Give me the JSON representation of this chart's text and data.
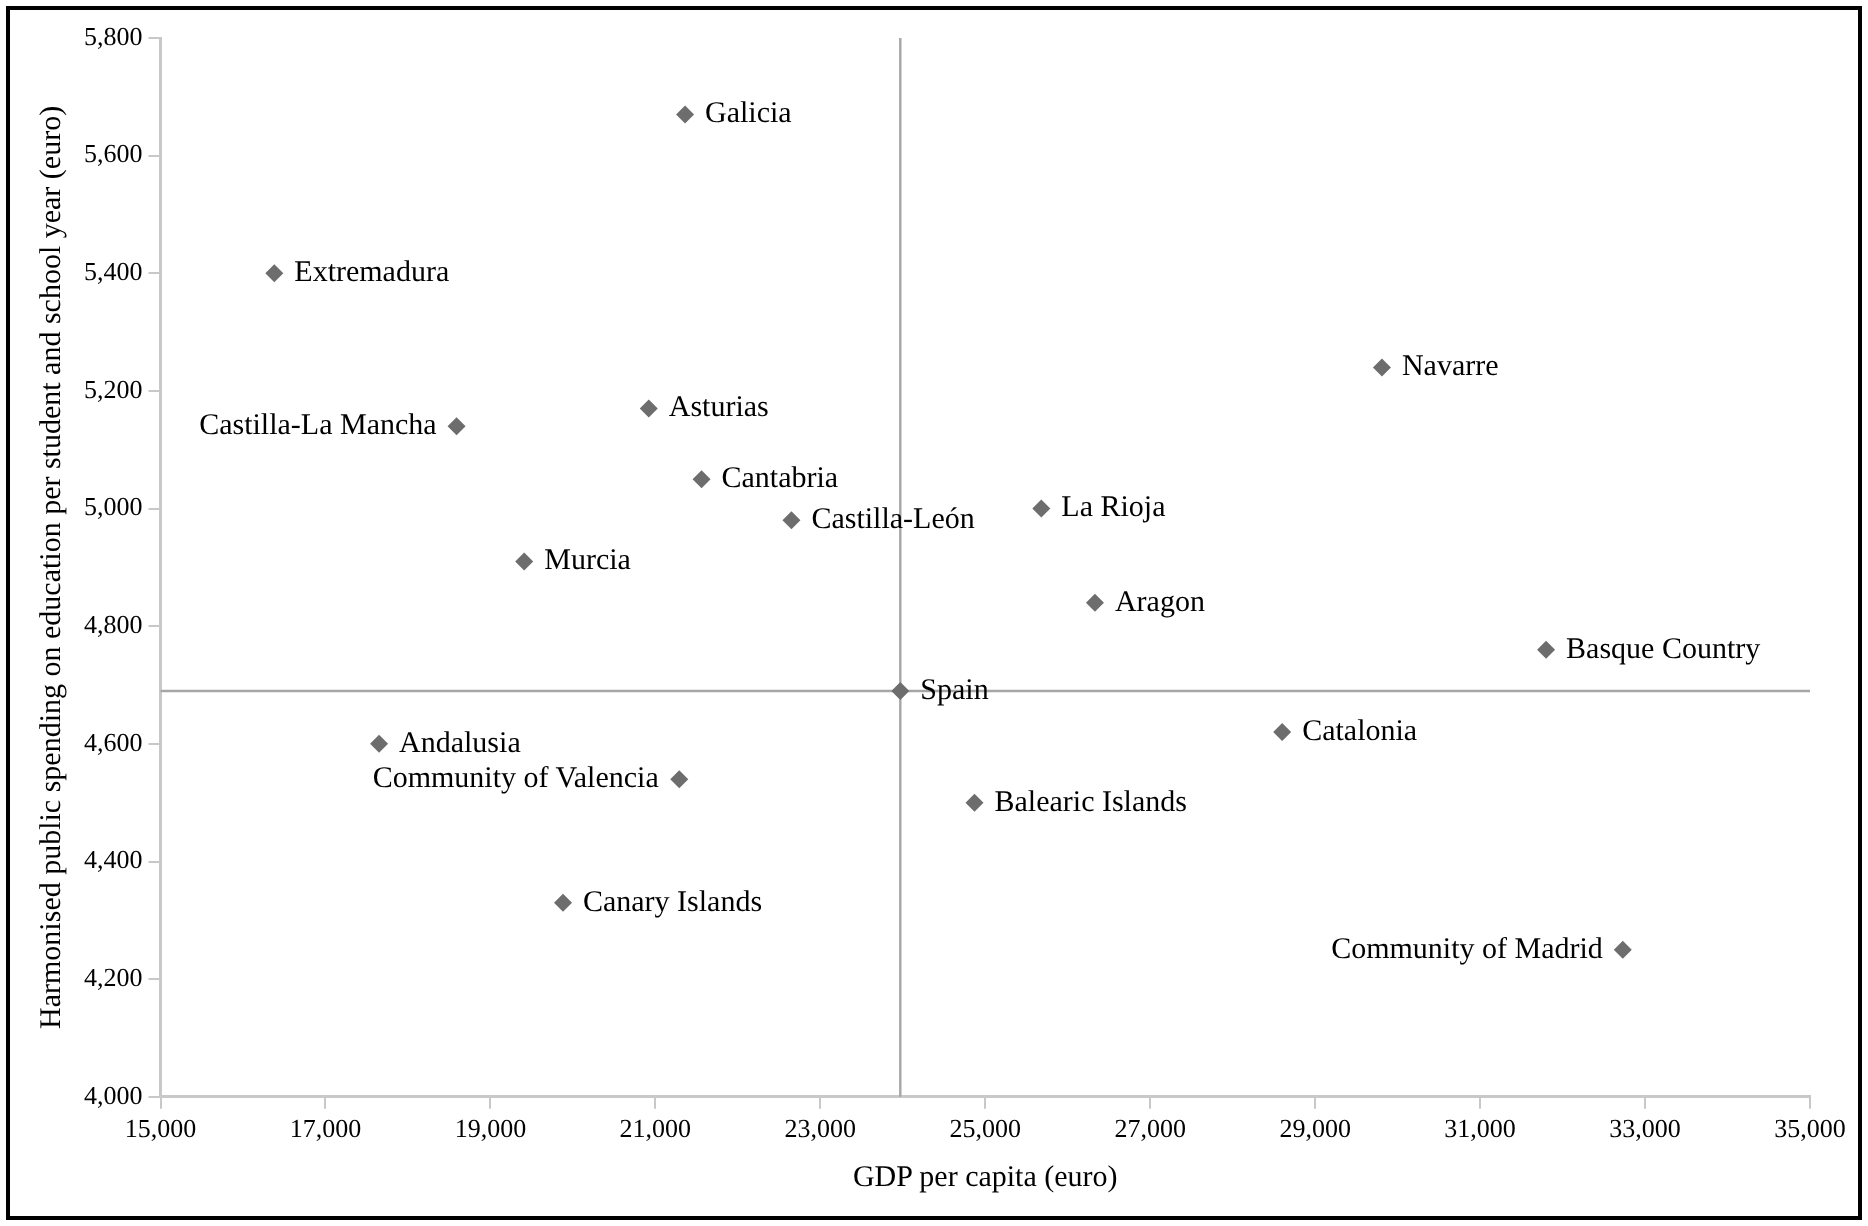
{
  "chart_data": {
    "type": "scatter",
    "xlabel": "GDP per capita (euro)",
    "ylabel": "Harmonised public spending on education per student and school year (euro)",
    "xlim": [
      15000,
      35000
    ],
    "xticks": [
      {
        "value": 15000,
        "label": "15,000"
      },
      {
        "value": 17000,
        "label": "17,000"
      },
      {
        "value": 19000,
        "label": "19,000"
      },
      {
        "value": 21000,
        "label": "21,000"
      },
      {
        "value": 23000,
        "label": "23,000"
      },
      {
        "value": 25000,
        "label": "25,000"
      },
      {
        "value": 27000,
        "label": "27,000"
      },
      {
        "value": 29000,
        "label": "29,000"
      },
      {
        "value": 31000,
        "label": "31,000"
      },
      {
        "value": 33000,
        "label": "33,000"
      },
      {
        "value": 35000,
        "label": "35,000"
      }
    ],
    "ylim": [
      4000,
      5800
    ],
    "yticks": [
      {
        "value": 4000,
        "label": "4,000"
      },
      {
        "value": 4200,
        "label": "4,200"
      },
      {
        "value": 4400,
        "label": "4,400"
      },
      {
        "value": 4600,
        "label": "4,600"
      },
      {
        "value": 4800,
        "label": "4,800"
      },
      {
        "value": 5000,
        "label": "5,000"
      },
      {
        "value": 5200,
        "label": "5,200"
      },
      {
        "value": 5400,
        "label": "5,400"
      },
      {
        "value": 5600,
        "label": "5,600"
      },
      {
        "value": 5800,
        "label": "5,800"
      }
    ],
    "grid": false,
    "legend": false,
    "marker": "diamond",
    "series": [
      {
        "color": "#6d6d6d",
        "x": [
          21360,
          16380,
          18590,
          20920,
          21560,
          22650,
          19410,
          29810,
          25680,
          26330,
          23970,
          17650,
          21290,
          19880,
          31800,
          28600,
          24870,
          32730
        ],
        "values": [
          5670,
          5400,
          5140,
          5170,
          5050,
          4980,
          4910,
          5240,
          5000,
          4840,
          4690,
          4600,
          4540,
          4330,
          4760,
          4620,
          4500,
          4250
        ]
      }
    ],
    "ref_lines": [
      {
        "axis": "x",
        "value": 23970,
        "color": "#a6a6a6"
      },
      {
        "axis": "y",
        "value": 4690,
        "color": "#a6a6a6"
      }
    ],
    "annotations": [
      {
        "text": "Galicia",
        "x": 21360,
        "y": 5670
      },
      {
        "text": "Extremadura",
        "x": 16380,
        "y": 5400
      },
      {
        "text": "Castilla-La Mancha",
        "x": 18590,
        "y": 5140
      },
      {
        "text": "Asturias",
        "x": 20920,
        "y": 5170
      },
      {
        "text": "Cantabria",
        "x": 21560,
        "y": 5050
      },
      {
        "text": "Castilla-León",
        "x": 22650,
        "y": 4980
      },
      {
        "text": "Murcia",
        "x": 19410,
        "y": 4910
      },
      {
        "text": "Navarre",
        "x": 29810,
        "y": 5240
      },
      {
        "text": "La Rioja",
        "x": 25680,
        "y": 5000
      },
      {
        "text": "Aragon",
        "x": 26330,
        "y": 4840
      },
      {
        "text": "Spain",
        "x": 23970,
        "y": 4690
      },
      {
        "text": "Andalusia",
        "x": 17650,
        "y": 4600
      },
      {
        "text": "Community of Valencia",
        "x": 21290,
        "y": 4540
      },
      {
        "text": "Canary Islands",
        "x": 19880,
        "y": 4330
      },
      {
        "text": "Basque Country",
        "x": 31800,
        "y": 4760
      },
      {
        "text": "Catalonia",
        "x": 28600,
        "y": 4620
      },
      {
        "text": "Balearic Islands",
        "x": 24870,
        "y": 4500
      },
      {
        "text": "Community of Madrid",
        "x": 32730,
        "y": 4250
      }
    ]
  }
}
